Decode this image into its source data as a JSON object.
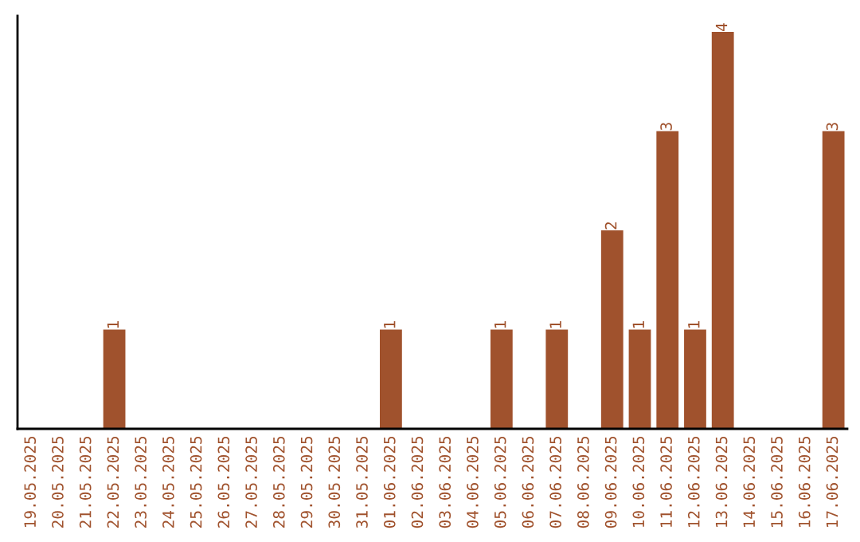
{
  "chart_data": {
    "type": "bar",
    "categories": [
      "19.05.2025",
      "20.05.2025",
      "21.05.2025",
      "22.05.2025",
      "23.05.2025",
      "24.05.2025",
      "25.05.2025",
      "26.05.2025",
      "27.05.2025",
      "28.05.2025",
      "29.05.2025",
      "30.05.2025",
      "31.05.2025",
      "01.06.2025",
      "02.06.2025",
      "03.06.2025",
      "04.06.2025",
      "05.06.2025",
      "06.06.2025",
      "07.06.2025",
      "08.06.2025",
      "09.06.2025",
      "10.06.2025",
      "11.06.2025",
      "12.06.2025",
      "13.06.2025",
      "14.06.2025",
      "15.06.2025",
      "16.06.2025",
      "17.06.2025"
    ],
    "values": [
      0,
      0,
      0,
      1,
      0,
      0,
      0,
      0,
      0,
      0,
      0,
      0,
      0,
      1,
      0,
      0,
      0,
      1,
      0,
      1,
      0,
      2,
      1,
      3,
      1,
      4,
      0,
      0,
      0,
      3
    ],
    "value_labels": [
      null,
      null,
      null,
      "1",
      null,
      null,
      null,
      null,
      null,
      null,
      null,
      null,
      null,
      "1",
      null,
      null,
      null,
      "1",
      null,
      "1",
      null,
      "2",
      "1",
      "3",
      "1",
      "4",
      null,
      null,
      null,
      "3"
    ],
    "color": "#a0522d",
    "tick_labels": "x",
    "grid": false,
    "legend": false
  }
}
